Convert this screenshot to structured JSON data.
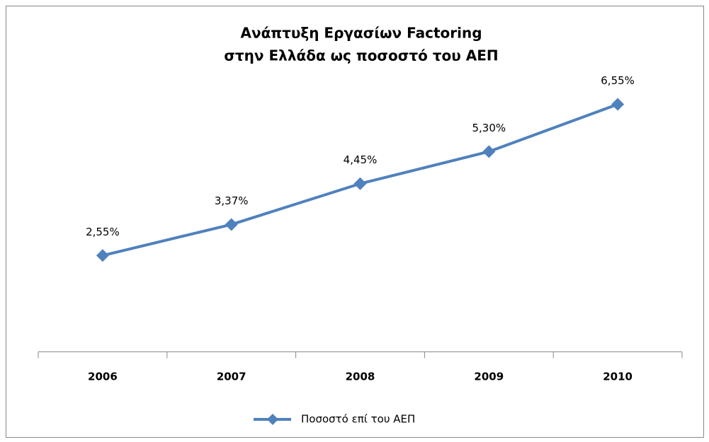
{
  "chart_data": {
    "type": "line",
    "title": [
      "Ανάπτυξη Εργασίων Factoring",
      "στην Ελλάδα ως ποσοστό του ΑΕΠ"
    ],
    "categories": [
      "2006",
      "2007",
      "2008",
      "2009",
      "2010"
    ],
    "series": [
      {
        "name": "Ποσοστό επί του ΑΕΠ",
        "color": "#4f81bd",
        "values": [
          2.55,
          3.37,
          4.45,
          5.3,
          6.55
        ],
        "value_labels": [
          "2,55%",
          "3,37%",
          "4,45%",
          "5,30%",
          "6,55%"
        ]
      }
    ],
    "ylim": [
      0,
      7
    ],
    "legend": "bottom"
  }
}
